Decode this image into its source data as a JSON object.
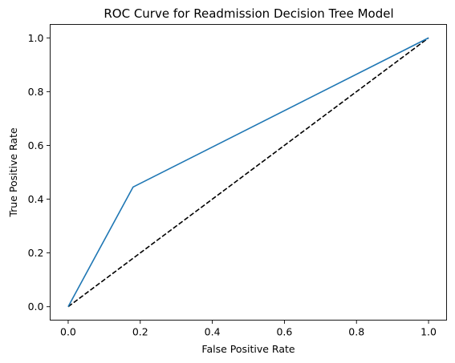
{
  "chart_data": {
    "type": "line",
    "title": "ROC Curve for Readmission Decision Tree Model",
    "xlabel": "False Positive Rate",
    "ylabel": "True Positive Rate",
    "xlim": [
      -0.05,
      1.05
    ],
    "ylim": [
      -0.05,
      1.05
    ],
    "xticks": [
      "0.0",
      "0.2",
      "0.4",
      "0.6",
      "0.8",
      "1.0"
    ],
    "yticks": [
      "0.0",
      "0.2",
      "0.4",
      "0.6",
      "0.8",
      "1.0"
    ],
    "grid": false,
    "series": [
      {
        "style": "solid",
        "color": "#1f77b4",
        "x": [
          0.0,
          0.18,
          1.0
        ],
        "y": [
          0.0,
          0.445,
          1.0
        ]
      },
      {
        "style": "dashed",
        "color": "#000000",
        "x": [
          0.0,
          1.0
        ],
        "y": [
          0.0,
          1.0
        ]
      }
    ]
  }
}
